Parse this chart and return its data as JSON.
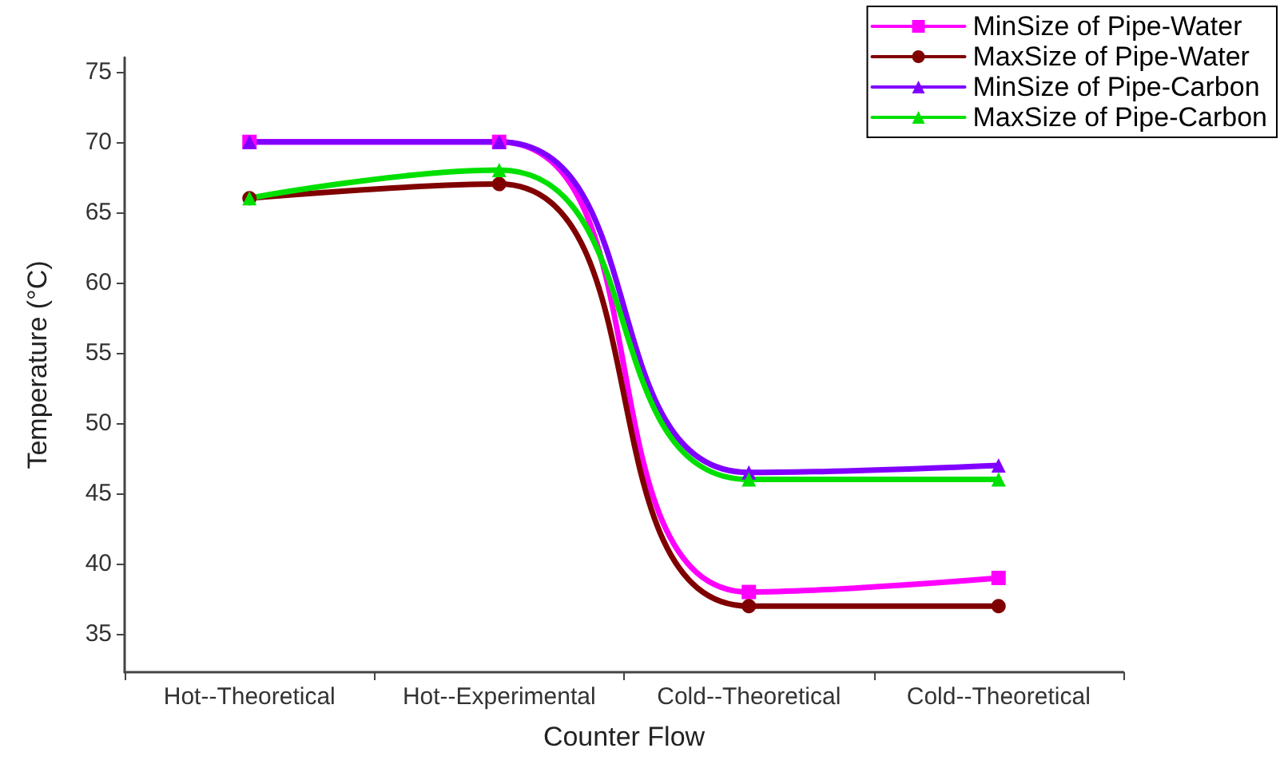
{
  "chart_data": {
    "type": "line",
    "xlabel": "Counter Flow",
    "ylabel": "Temperature (°C)",
    "categories": [
      "Hot--Theoretical",
      "Hot--Experimental",
      "Cold--Theoretical",
      "Cold--Theoretical"
    ],
    "series": [
      {
        "name": "MinSize of Pipe-Water",
        "color": "#ff00ff",
        "marker": "square",
        "values": [
          70,
          70,
          38,
          39
        ]
      },
      {
        "name": "MaxSize of Pipe-Water",
        "color": "#800000",
        "marker": "circle",
        "values": [
          66,
          67,
          37,
          37
        ]
      },
      {
        "name": "MinSize of Pipe-Carbon",
        "color": "#8000ff",
        "marker": "triangle",
        "values": [
          70,
          70,
          46.5,
          47
        ]
      },
      {
        "name": "MaxSize of Pipe-Carbon",
        "color": "#00e000",
        "marker": "triangle",
        "values": [
          66,
          68,
          46,
          46
        ]
      }
    ],
    "ylim": [
      32.3,
      76
    ],
    "yticks": [
      35,
      40,
      45,
      50,
      55,
      60,
      65,
      70,
      75
    ],
    "grid": false,
    "legend": "top right",
    "line_style": "solid"
  }
}
